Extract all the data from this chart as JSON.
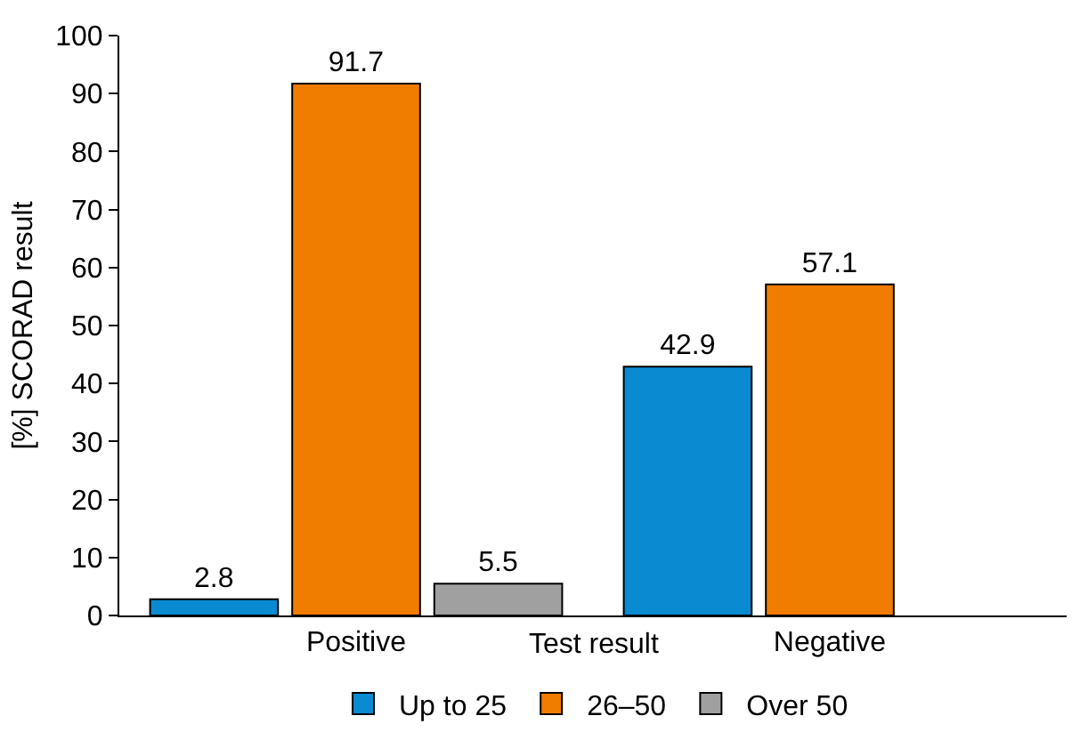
{
  "chart_data": {
    "type": "bar",
    "xlabel": "Test result",
    "ylabel": "[%] SCORAD result",
    "categories": [
      "Positive",
      "Negative"
    ],
    "series": [
      {
        "name": "Up to 25",
        "color": "#0a8ad0",
        "values": [
          2.8,
          42.9
        ]
      },
      {
        "name": "26–50",
        "color": "#f07c00",
        "values": [
          91.7,
          57.1
        ]
      },
      {
        "name": "Over 50",
        "color": "#a0a0a0",
        "values": [
          5.5,
          null
        ]
      }
    ],
    "ylim": [
      0,
      100
    ],
    "yticks": [
      0,
      10,
      20,
      30,
      40,
      50,
      60,
      70,
      80,
      90,
      100
    ],
    "data_labels": true,
    "legend": "bottom"
  }
}
